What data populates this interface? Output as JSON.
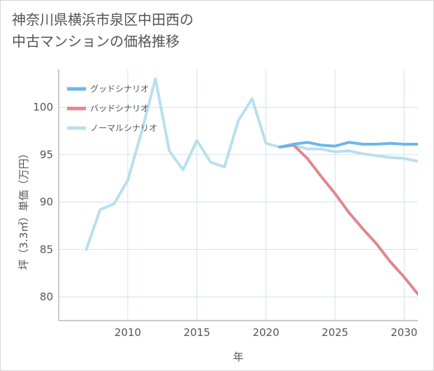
{
  "title": "神奈川県横浜市泉区中田西の\n中古マンションの価格推移",
  "chart_data": {
    "type": "line",
    "xlabel": "年",
    "ylabel": "坪（3.3㎡）単価（万円）",
    "xlim": [
      2005,
      2031
    ],
    "ylim": [
      77.5,
      104
    ],
    "x_ticks": [
      2010,
      2015,
      2020,
      2025,
      2030
    ],
    "y_ticks": [
      80,
      85,
      90,
      95,
      100
    ],
    "grid": true,
    "legend_position": "top-left",
    "series": [
      {
        "name": "グッドシナリオ",
        "color": "#6cb6ec",
        "x": [
          2021,
          2022,
          2023,
          2024,
          2025,
          2026,
          2027,
          2028,
          2029,
          2030,
          2031
        ],
        "values": [
          95.8,
          96.1,
          96.3,
          96.0,
          95.9,
          96.3,
          96.1,
          96.1,
          96.2,
          96.1,
          96.1
        ]
      },
      {
        "name": "バッドシナリオ",
        "color": "#e0878d",
        "x": [
          2021,
          2022,
          2023,
          2024,
          2025,
          2026,
          2027,
          2028,
          2029,
          2030,
          2031
        ],
        "values": [
          95.8,
          96.0,
          94.6,
          92.7,
          90.9,
          88.9,
          87.2,
          85.6,
          83.7,
          82.1,
          80.3
        ]
      },
      {
        "name": "ノーマルシナリオ",
        "color": "#b9dfee",
        "x": [
          2007,
          2008,
          2009,
          2010,
          2011,
          2012,
          2013,
          2014,
          2015,
          2016,
          2017,
          2018,
          2019,
          2020,
          2021,
          2022,
          2023,
          2024,
          2025,
          2026,
          2027,
          2028,
          2029,
          2030,
          2031
        ],
        "values": [
          85.0,
          89.2,
          89.8,
          92.3,
          97.4,
          103.0,
          95.4,
          93.4,
          96.5,
          94.2,
          93.7,
          98.6,
          100.9,
          96.2,
          95.8,
          96.0,
          95.6,
          95.6,
          95.3,
          95.4,
          95.1,
          94.9,
          94.7,
          94.6,
          94.3
        ]
      }
    ]
  }
}
